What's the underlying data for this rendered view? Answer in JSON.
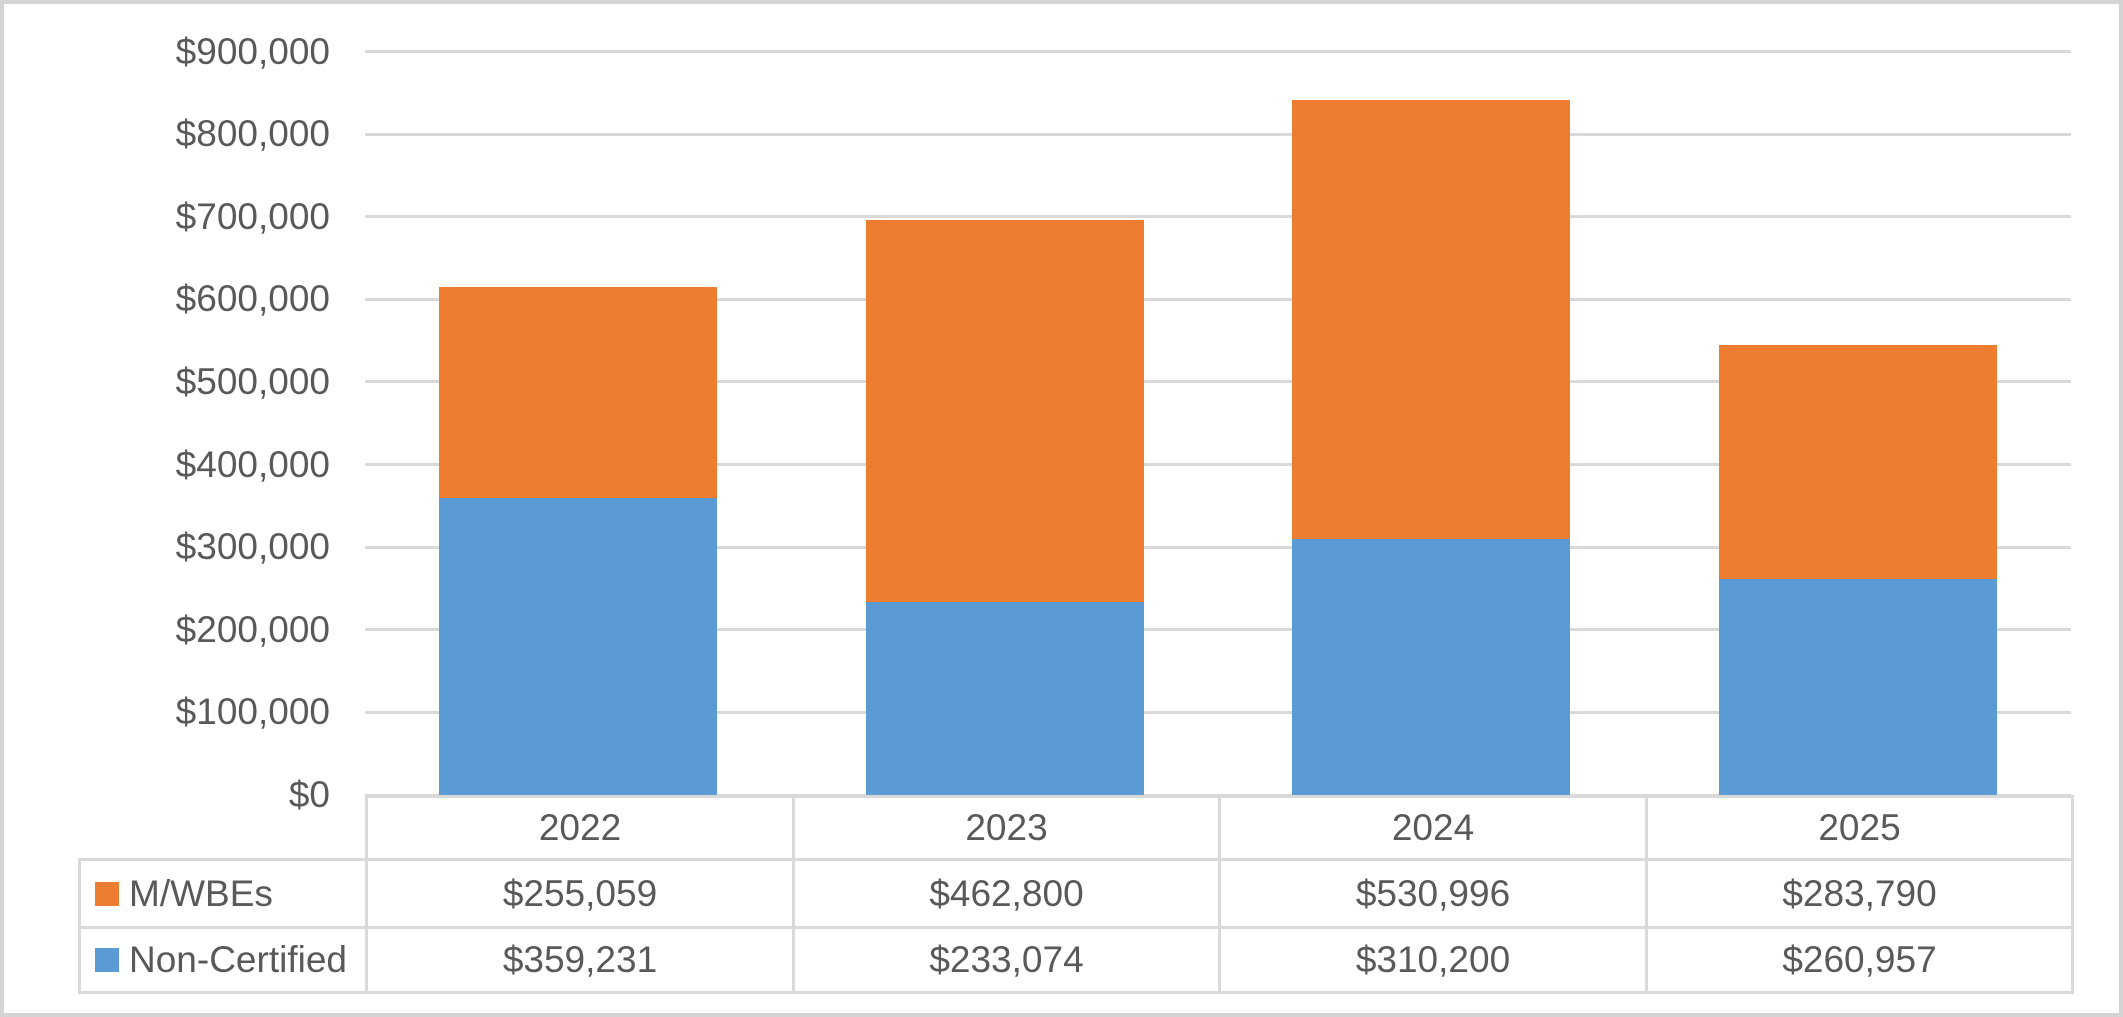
{
  "chart_data": {
    "type": "bar",
    "stacked": true,
    "title": "",
    "xlabel": "",
    "ylabel": "",
    "categories": [
      "2022",
      "2023",
      "2024",
      "2025"
    ],
    "series": [
      {
        "name": "M/WBEs",
        "color": "#ED7D31",
        "values": [
          255059,
          462800,
          530996,
          283790
        ],
        "formatted": [
          "$255,059",
          "$462,800",
          "$530,996",
          "$283,790"
        ]
      },
      {
        "name": "Non-Certified",
        "color": "#5B9BD5",
        "values": [
          359231,
          233074,
          310200,
          260957
        ],
        "formatted": [
          "$359,231",
          "$233,074",
          "$310,200",
          "$260,957"
        ]
      }
    ],
    "stack_order_bottom_to_top": [
      "Non-Certified",
      "M/WBEs"
    ],
    "y_axis": {
      "min": 0,
      "max": 900000,
      "step": 100000,
      "ticks": [
        {
          "value": 0,
          "label": "$0"
        },
        {
          "value": 100000,
          "label": "$100,000"
        },
        {
          "value": 200000,
          "label": "$200,000"
        },
        {
          "value": 300000,
          "label": "$300,000"
        },
        {
          "value": 400000,
          "label": "$400,000"
        },
        {
          "value": 500000,
          "label": "$500,000"
        },
        {
          "value": 600000,
          "label": "$600,000"
        },
        {
          "value": 700000,
          "label": "$700,000"
        },
        {
          "value": 800000,
          "label": "$800,000"
        },
        {
          "value": 900000,
          "label": "$900,000"
        }
      ]
    },
    "grid": true,
    "legend_position": "data-table-left-column",
    "data_table_shown": true,
    "colors": {
      "gridline": "#d9d9d9",
      "table_border": "#d9d9d9",
      "text": "#595959",
      "frame_border": "#d4d4d4",
      "background": "#ffffff"
    }
  }
}
